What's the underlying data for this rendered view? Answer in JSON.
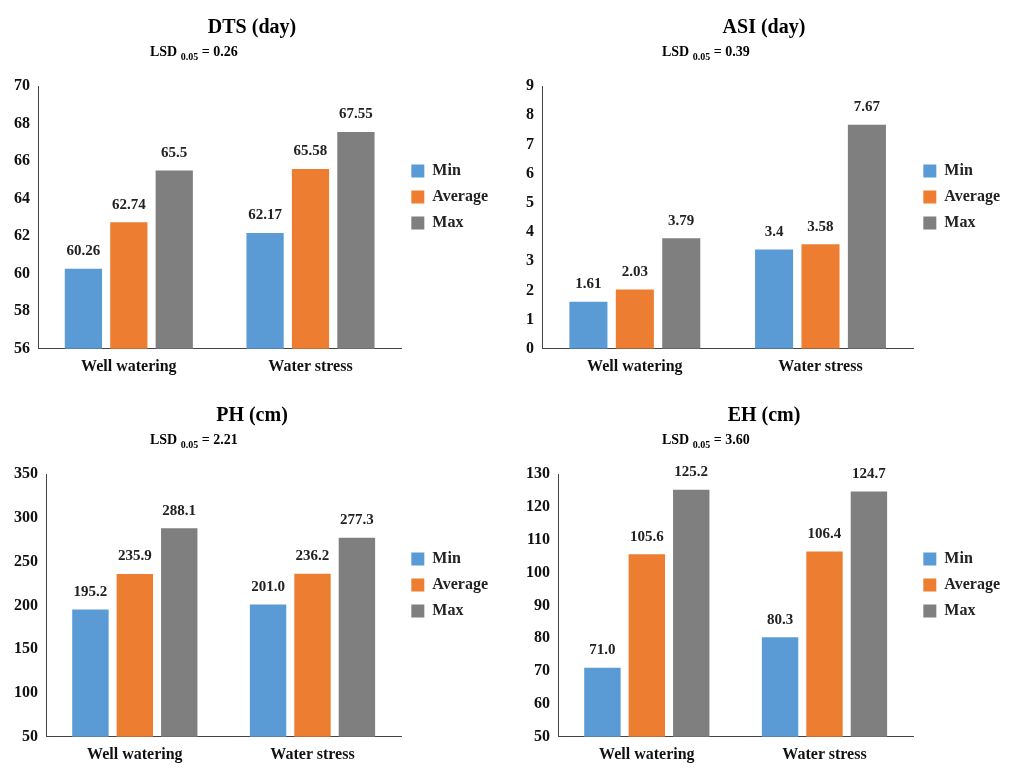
{
  "chart_data": [
    {
      "type": "bar",
      "title": "DTS (day)",
      "categories": [
        "Well watering",
        "Water stress"
      ],
      "ylim": [
        56,
        70
      ],
      "yticks": [
        56,
        58,
        60,
        62,
        64,
        66,
        68,
        70
      ],
      "grid": false,
      "legend": "right",
      "annotations": [
        "LSD $_{0.05}$ = 0.26"
      ],
      "series": [
        {
          "name": "Min",
          "color": "#5b9bd5",
          "values": [
            60.26,
            62.17
          ],
          "value_labels": [
            "60.26",
            "62.17"
          ]
        },
        {
          "name": "Average",
          "color": "#ed7d31",
          "values": [
            62.74,
            65.58
          ],
          "value_labels": [
            "62.74",
            "65.58"
          ]
        },
        {
          "name": "Max",
          "color": "#7f7f7f",
          "values": [
            65.5,
            67.55
          ],
          "value_labels": [
            "65.5",
            "67.55"
          ]
        }
      ]
    },
    {
      "type": "bar",
      "title": "ASI (day)",
      "categories": [
        "Well watering",
        "Water stress"
      ],
      "ylim": [
        0,
        9
      ],
      "yticks": [
        0,
        1,
        2,
        3,
        4,
        5,
        6,
        7,
        8,
        9
      ],
      "grid": false,
      "legend": "right",
      "annotations": [
        "LSD $_{0.05}$ = 0.39"
      ],
      "series": [
        {
          "name": "Min",
          "color": "#5b9bd5",
          "values": [
            1.61,
            3.4
          ],
          "value_labels": [
            "1.61",
            "3.4"
          ]
        },
        {
          "name": "Average",
          "color": "#ed7d31",
          "values": [
            2.03,
            3.58
          ],
          "value_labels": [
            "2.03",
            "3.58"
          ]
        },
        {
          "name": "Max",
          "color": "#7f7f7f",
          "values": [
            3.79,
            7.67
          ],
          "value_labels": [
            "3.79",
            "7.67"
          ]
        }
      ]
    },
    {
      "type": "bar",
      "title": "PH (cm)",
      "categories": [
        "Well watering",
        "Water stress"
      ],
      "ylim": [
        50,
        350
      ],
      "yticks": [
        50,
        100,
        150,
        200,
        250,
        300,
        350
      ],
      "grid": false,
      "legend": "right",
      "annotations": [
        "LSD $_{0.05}$ = 2.21"
      ],
      "series": [
        {
          "name": "Min",
          "color": "#5b9bd5",
          "values": [
            195.2,
            201.0
          ],
          "value_labels": [
            "195.2",
            "201.0"
          ]
        },
        {
          "name": "Average",
          "color": "#ed7d31",
          "values": [
            235.9,
            236.2
          ],
          "value_labels": [
            "235.9",
            "236.2"
          ]
        },
        {
          "name": "Max",
          "color": "#7f7f7f",
          "values": [
            288.1,
            277.3
          ],
          "value_labels": [
            "288.1",
            "277.3"
          ]
        }
      ]
    },
    {
      "type": "bar",
      "title": "EH (cm)",
      "categories": [
        "Well watering",
        "Water stress"
      ],
      "ylim": [
        50,
        130
      ],
      "yticks": [
        50,
        60,
        70,
        80,
        90,
        100,
        110,
        120,
        130
      ],
      "grid": false,
      "legend": "right",
      "annotations": [
        "LSD $_{0.05}$ = 3.60"
      ],
      "series": [
        {
          "name": "Min",
          "color": "#5b9bd5",
          "values": [
            71.0,
            80.3
          ],
          "value_labels": [
            "71.0",
            "80.3"
          ]
        },
        {
          "name": "Average",
          "color": "#ed7d31",
          "values": [
            105.6,
            106.4
          ],
          "value_labels": [
            "105.6",
            "106.4"
          ]
        },
        {
          "name": "Max",
          "color": "#7f7f7f",
          "values": [
            125.2,
            124.7
          ],
          "value_labels": [
            "125.2",
            "124.7"
          ]
        }
      ]
    }
  ]
}
